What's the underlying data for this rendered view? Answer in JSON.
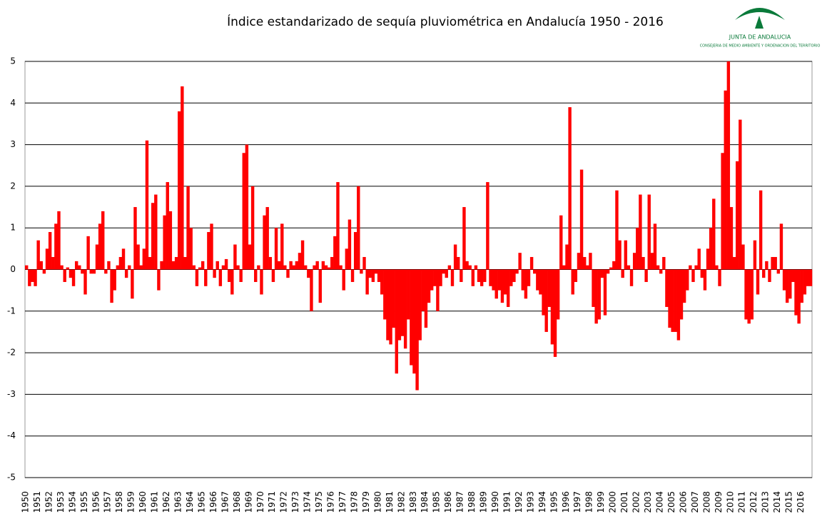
{
  "chart_data": {
    "type": "bar",
    "title": "Índice estandarizado de sequía pluviométrica en Andalucía 1950 - 2016",
    "color": "#ff0000",
    "grid": true,
    "ylim": [
      -5,
      5
    ],
    "yticks": [
      -5,
      -4,
      -3,
      -2,
      -1,
      0,
      1,
      2,
      3,
      4,
      5
    ],
    "categories": [
      "1950",
      null,
      null,
      null,
      "1951",
      null,
      null,
      null,
      "1952",
      null,
      null,
      null,
      "1953",
      null,
      null,
      null,
      "1954",
      null,
      null,
      null,
      "1955",
      null,
      null,
      null,
      "1956",
      null,
      null,
      null,
      "1957",
      null,
      null,
      null,
      "1958",
      null,
      null,
      null,
      "1959",
      null,
      null,
      null,
      "1960",
      null,
      null,
      null,
      "1961",
      null,
      null,
      null,
      "1962",
      null,
      null,
      null,
      "1963",
      null,
      null,
      null,
      "1964",
      null,
      null,
      null,
      "1965",
      null,
      null,
      null,
      "1966",
      null,
      null,
      null,
      "1967",
      null,
      null,
      null,
      "1968",
      null,
      null,
      null,
      "1969",
      null,
      null,
      null,
      "1970",
      null,
      null,
      null,
      "1971",
      null,
      null,
      null,
      "1972",
      null,
      null,
      null,
      "1973",
      null,
      null,
      null,
      "1974",
      null,
      null,
      null,
      "1975",
      null,
      null,
      null,
      "1976",
      null,
      null,
      null,
      "1977",
      null,
      null,
      null,
      "1978",
      null,
      null,
      null,
      "1979",
      null,
      null,
      null,
      "1980",
      null,
      null,
      null,
      "1981",
      null,
      null,
      null,
      "1982",
      null,
      null,
      null,
      "1983",
      null,
      null,
      null,
      "1984",
      null,
      null,
      null,
      "1985",
      null,
      null,
      null,
      "1986",
      null,
      null,
      null,
      "1987",
      null,
      null,
      null,
      "1988",
      null,
      null,
      null,
      "1989",
      null,
      null,
      null,
      "1990",
      null,
      null,
      null,
      "1991",
      null,
      null,
      null,
      "1992",
      null,
      null,
      null,
      "1993",
      null,
      null,
      null,
      "1994",
      null,
      null,
      null,
      "1995",
      null,
      null,
      null,
      "1996",
      null,
      null,
      null,
      "1997",
      null,
      null,
      null,
      "1998",
      null,
      null,
      null,
      "1999",
      null,
      null,
      null,
      "2000",
      null,
      null,
      null,
      "2001",
      null,
      null,
      null,
      "2002",
      null,
      null,
      null,
      "2003",
      null,
      null,
      null,
      "2004",
      null,
      null,
      null,
      "2005",
      null,
      null,
      null,
      "2006",
      null,
      null,
      null,
      "2007",
      null,
      null,
      null,
      "2008",
      null,
      null,
      null,
      "2009",
      null,
      null,
      null,
      "2010",
      null,
      null,
      null,
      "2011",
      null,
      null,
      null,
      "2012",
      null,
      null,
      null,
      "2013",
      null,
      null,
      null,
      "2014",
      null,
      null,
      null,
      "2015",
      null,
      null,
      null,
      "2016",
      null,
      null,
      null
    ],
    "values": [
      0.1,
      -0.4,
      -0.3,
      -0.4,
      0.7,
      0.2,
      -0.1,
      0.5,
      0.9,
      0.3,
      1.1,
      1.4,
      0.1,
      -0.3,
      0.05,
      -0.2,
      -0.4,
      0.2,
      0.1,
      -0.1,
      -0.6,
      0.8,
      -0.1,
      -0.1,
      0.6,
      1.1,
      1.4,
      -0.1,
      0.2,
      -0.8,
      -0.5,
      0.1,
      0.3,
      0.5,
      -0.2,
      0.1,
      -0.7,
      1.5,
      0.6,
      0.1,
      0.5,
      3.1,
      0.3,
      1.6,
      1.8,
      -0.5,
      0.2,
      1.3,
      2.1,
      1.4,
      0.2,
      0.3,
      3.8,
      4.4,
      0.3,
      2.0,
      1.0,
      0.1,
      -0.4,
      0.05,
      0.2,
      -0.4,
      0.9,
      1.1,
      -0.2,
      0.2,
      -0.4,
      0.1,
      0.25,
      -0.3,
      -0.6,
      0.6,
      0.1,
      -0.3,
      2.8,
      3.0,
      0.6,
      2.0,
      -0.3,
      0.1,
      -0.6,
      1.3,
      1.5,
      0.3,
      -0.3,
      1.0,
      0.2,
      1.1,
      0.1,
      -0.2,
      0.2,
      0.1,
      0.2,
      0.4,
      0.7,
      0.1,
      -0.2,
      -1.0,
      0.1,
      0.2,
      -0.8,
      0.2,
      0.1,
      0.05,
      0.3,
      0.8,
      2.1,
      0.1,
      -0.5,
      0.5,
      1.2,
      -0.3,
      0.9,
      2.0,
      -0.1,
      0.3,
      -0.6,
      -0.2,
      -0.3,
      -0.1,
      -0.3,
      -0.6,
      -1.2,
      -1.7,
      -1.8,
      -1.4,
      -2.5,
      -1.7,
      -1.6,
      -1.9,
      -1.2,
      -2.3,
      -2.5,
      -2.9,
      -1.7,
      -1.0,
      -1.4,
      -0.8,
      -0.5,
      -0.4,
      -1.0,
      -0.4,
      -0.1,
      -0.2,
      0.1,
      -0.4,
      0.6,
      0.3,
      -0.3,
      1.5,
      0.2,
      0.1,
      -0.4,
      0.1,
      -0.3,
      -0.4,
      -0.3,
      2.1,
      -0.4,
      -0.5,
      -0.7,
      -0.5,
      -0.8,
      -0.6,
      -0.9,
      -0.4,
      -0.3,
      -0.1,
      0.4,
      -0.5,
      -0.7,
      -0.4,
      0.3,
      -0.1,
      -0.5,
      -0.6,
      -1.1,
      -1.5,
      -0.9,
      -1.8,
      -2.1,
      -1.2,
      1.3,
      0.1,
      0.6,
      3.9,
      -0.6,
      -0.3,
      0.4,
      2.4,
      0.3,
      0.1,
      0.4,
      -0.9,
      -1.3,
      -1.2,
      -0.2,
      -1.1,
      -0.1,
      0.05,
      0.2,
      1.9,
      0.7,
      -0.2,
      0.7,
      0.1,
      -0.4,
      0.4,
      1.0,
      1.8,
      0.3,
      -0.3,
      1.8,
      0.4,
      1.1,
      0.1,
      -0.1,
      0.3,
      -0.9,
      -1.4,
      -1.5,
      -1.5,
      -1.7,
      -1.2,
      -0.8,
      -0.5,
      0.1,
      -0.3,
      0.1,
      0.5,
      -0.2,
      -0.5,
      0.5,
      1.0,
      1.7,
      0.1,
      -0.4,
      2.8,
      4.3,
      5.0,
      1.5,
      0.3,
      2.6,
      3.6,
      0.6,
      -1.2,
      -1.3,
      -1.2,
      0.7,
      -0.6,
      1.9,
      -0.2,
      0.2,
      -0.3,
      0.3,
      0.3,
      -0.1,
      1.1,
      -0.5,
      -0.8,
      -0.7,
      -0.3,
      -1.1,
      -1.3,
      -0.8,
      -0.6,
      -0.4,
      -0.4
    ]
  },
  "logo": {
    "name": "JUNTA DE ANDALUCIA",
    "department": "CONSEJERIA DE MEDIO AMBIENTE Y ORDENACION DEL TERRITORIO"
  }
}
